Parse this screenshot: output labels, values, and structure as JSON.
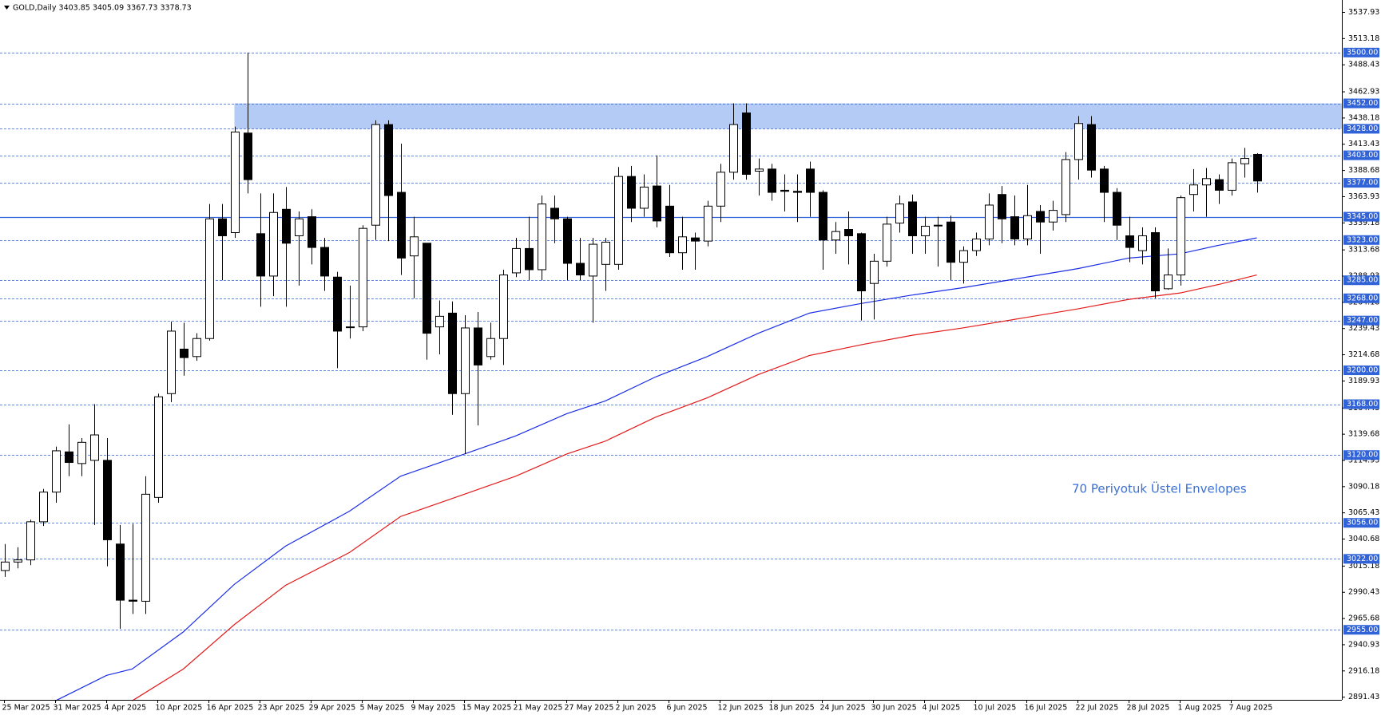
{
  "chart_data": {
    "type": "candlestick",
    "title": "GOLD,Daily 3403.85 3405.09 3367.73 3378.73",
    "annotation": "70 Periyotuk Üstel Envelopes",
    "categories": [
      "25 Mar 2025",
      null,
      null,
      null,
      "31 Mar 2025",
      null,
      null,
      null,
      "4 Apr 2025",
      null,
      null,
      null,
      "10 Apr 2025",
      null,
      null,
      null,
      "16 Apr 2025",
      null,
      null,
      null,
      "23 Apr 2025",
      null,
      null,
      null,
      "29 Apr 2025",
      null,
      null,
      null,
      "5 May 2025",
      null,
      null,
      null,
      "9 May 2025",
      null,
      null,
      null,
      "15 May 2025",
      null,
      null,
      null,
      "21 May 2025",
      null,
      null,
      null,
      "27 May 2025",
      null,
      null,
      null,
      "2 Jun 2025",
      null,
      null,
      null,
      "6 Jun 2025",
      null,
      null,
      null,
      "12 Jun 2025",
      null,
      null,
      null,
      "18 Jun 2025",
      null,
      null,
      null,
      "24 Jun 2025",
      null,
      null,
      null,
      "30 Jun 2025",
      null,
      null,
      null,
      "4 Jul 2025",
      null,
      null,
      null,
      "10 Jul 2025",
      null,
      null,
      null,
      "16 Jul 2025",
      null,
      null,
      null,
      "22 Jul 2025",
      null,
      null,
      null,
      "28 Jul 2025",
      null,
      null,
      null,
      "1 Aug 2025",
      null,
      null,
      null,
      "7 Aug 2025",
      null,
      null
    ],
    "open": [
      3011,
      3019,
      3021,
      3057,
      3085,
      3123,
      3112,
      3115,
      3115,
      3036,
      2983,
      2982,
      3080,
      3178,
      3220,
      3213,
      3230,
      3343,
      3330,
      3424,
      3329,
      3289,
      3352,
      3327,
      3345,
      3316,
      3288,
      3241,
      3241,
      3337,
      3432,
      3368,
      3308,
      3320,
      3241,
      3254,
      3178,
      3240,
      3213,
      3230,
      3292,
      3315,
      3295,
      3353,
      3343,
      3301,
      3289,
      3300,
      3300,
      3383,
      3353,
      3374,
      3355,
      3311,
      3325,
      3322,
      3355,
      3387,
      3443,
      3388,
      3390,
      3370,
      3369,
      3390,
      3368,
      3323,
      3333,
      3329,
      3282,
      3303,
      3339,
      3359,
      3327,
      3337,
      3340,
      3302,
      3313,
      3324,
      3366,
      3345,
      3324,
      3350,
      3340,
      3347,
      3399,
      3432,
      3390,
      3368,
      3327,
      3313,
      3330,
      3277,
      3290,
      3366,
      3375,
      3380,
      3370,
      3395,
      3403.85
    ],
    "high": [
      3036,
      3033,
      3059,
      3088,
      3128,
      3149,
      3136,
      3168,
      3136,
      3054,
      3055,
      3100,
      3178,
      3246,
      3245,
      3235,
      3357,
      3357,
      3430,
      3500,
      3367,
      3367,
      3373,
      3350,
      3352,
      3325,
      3293,
      3280,
      3337,
      3436,
      3436,
      3414,
      3345,
      3320,
      3266,
      3265,
      3252,
      3255,
      3245,
      3295,
      3325,
      3345,
      3365,
      3365,
      3345,
      3325,
      3325,
      3325,
      3392,
      3393,
      3385,
      3403,
      3375,
      3345,
      3330,
      3360,
      3395,
      3452,
      3452,
      3400,
      3395,
      3385,
      3385,
      3397,
      3370,
      3340,
      3350,
      3330,
      3310,
      3345,
      3365,
      3366,
      3345,
      3345,
      3346,
      3317,
      3330,
      3367,
      3374,
      3365,
      3375,
      3356,
      3360,
      3406,
      3440,
      3440,
      3393,
      3372,
      3345,
      3335,
      3335,
      3315,
      3365,
      3390,
      3391,
      3385,
      3400,
      3410,
      3405.09
    ],
    "low": [
      3005,
      3013,
      3016,
      3053,
      3075,
      3100,
      3100,
      3054,
      3015,
      2956,
      2970,
      2970,
      3075,
      3170,
      3195,
      3209,
      3228,
      3285,
      3325,
      3367,
      3260,
      3270,
      3260,
      3280,
      3300,
      3275,
      3202,
      3230,
      3237,
      3323,
      3322,
      3290,
      3268,
      3210,
      3215,
      3158,
      3121,
      3148,
      3210,
      3205,
      3288,
      3285,
      3285,
      3320,
      3285,
      3285,
      3245,
      3275,
      3295,
      3340,
      3345,
      3335,
      3307,
      3295,
      3295,
      3317,
      3340,
      3380,
      3380,
      3365,
      3360,
      3350,
      3340,
      3345,
      3295,
      3310,
      3300,
      3247,
      3248,
      3298,
      3330,
      3310,
      3310,
      3298,
      3285,
      3282,
      3308,
      3318,
      3320,
      3318,
      3318,
      3310,
      3332,
      3340,
      3380,
      3382,
      3340,
      3323,
      3302,
      3300,
      3268,
      3276,
      3280,
      3350,
      3345,
      3357,
      3365,
      3382,
      3367.73
    ],
    "close": [
      3019,
      3021,
      3057,
      3085,
      3124,
      3113,
      3132,
      3139,
      3040,
      2983,
      2982,
      3083,
      3175,
      3237,
      3212,
      3230,
      3343,
      3327,
      3425,
      3380,
      3289,
      3349,
      3320,
      3343,
      3316,
      3289,
      3237,
      3241,
      3334,
      3432,
      3365,
      3306,
      3326,
      3235,
      3251,
      3178,
      3240,
      3205,
      3230,
      3290,
      3315,
      3295,
      3357,
      3343,
      3301,
      3290,
      3319,
      3321,
      3383,
      3353,
      3373,
      3341,
      3311,
      3326,
      3322,
      3355,
      3387,
      3432,
      3385,
      3390,
      3368,
      3369,
      3368,
      3368,
      3323,
      3331,
      3327,
      3275,
      3303,
      3338,
      3357,
      3327,
      3336,
      3337,
      3302,
      3313,
      3324,
      3356,
      3343,
      3324,
      3346,
      3340,
      3351,
      3399,
      3433,
      3389,
      3368,
      3337,
      3316,
      3327,
      3275,
      3290,
      3363,
      3375,
      3381,
      3370,
      3396,
      3400,
      3378.73
    ],
    "up_color": "#ffffff",
    "down_color": "#000000",
    "envelopes": [
      {
        "color": "#1a2ee6",
        "x": [
          4,
          8,
          10,
          14,
          18,
          22,
          27,
          31,
          36,
          40,
          44,
          47,
          51,
          55,
          59,
          63,
          67,
          71,
          75,
          80,
          84,
          88,
          92,
          95,
          98
        ],
        "values": [
          2888,
          2912,
          2918,
          2953,
          2998,
          3034,
          3067,
          3100,
          3121,
          3138,
          3159,
          3171,
          3194,
          3213,
          3235,
          3254,
          3263,
          3271,
          3278,
          3288,
          3296,
          3306,
          3310,
          3318,
          3325
        ]
      },
      {
        "color": "#e31a1a",
        "x": [
          10,
          14,
          18,
          22,
          27,
          31,
          36,
          40,
          44,
          47,
          51,
          55,
          59,
          63,
          67,
          71,
          75,
          80,
          84,
          88,
          92,
          95,
          98
        ],
        "values": [
          2888,
          2918,
          2960,
          2997,
          3028,
          3062,
          3083,
          3100,
          3121,
          3133,
          3156,
          3174,
          3196,
          3214,
          3224,
          3233,
          3240,
          3250,
          3258,
          3267,
          3273,
          3281,
          3290
        ]
      }
    ],
    "zone": {
      "from": 3428,
      "to": 3452,
      "x": 18,
      "color": "#b3cbf5"
    },
    "level_color": "#3062d8",
    "levels": [
      {
        "value": 3500,
        "label": "3500.00",
        "style": "dash"
      },
      {
        "value": 3452,
        "label": "3452.00",
        "style": "dash"
      },
      {
        "value": 3428,
        "label": "3428.00",
        "style": "dash"
      },
      {
        "value": 3403,
        "label": "3403.00",
        "style": "dash"
      },
      {
        "value": 3377,
        "label": "3377.00",
        "style": "dash"
      },
      {
        "value": 3345,
        "label": "3345.00",
        "style": "solid"
      },
      {
        "value": 3323,
        "label": "3323.00",
        "style": "dash"
      },
      {
        "value": 3285,
        "label": "3285.00",
        "style": "dash"
      },
      {
        "value": 3268,
        "label": "3268.00",
        "style": "dash"
      },
      {
        "value": 3247,
        "label": "3247.00",
        "style": "dash"
      },
      {
        "value": 3200,
        "label": "3200.00",
        "style": "dash"
      },
      {
        "value": 3168,
        "label": "3168.00",
        "style": "dash"
      },
      {
        "value": 3120,
        "label": "3120.00",
        "style": "dash"
      },
      {
        "value": 3056,
        "label": "3056.00",
        "style": "dash"
      },
      {
        "value": 3022,
        "label": "3022.00",
        "style": "dash"
      },
      {
        "value": 2955,
        "label": "2955.00",
        "style": "dash"
      }
    ],
    "ylim": [
      2888.9,
      3549.6
    ],
    "yticks": [
      3537.93,
      3513.18,
      3488.43,
      3462.93,
      3438.18,
      3413.43,
      3388.68,
      3363.93,
      3339.18,
      3313.68,
      3288.93,
      3264.18,
      3239.43,
      3214.68,
      3189.93,
      3164.43,
      3139.68,
      3114.93,
      3090.18,
      3065.43,
      3040.68,
      3015.18,
      2990.43,
      2965.68,
      2940.93,
      2916.18,
      2891.43
    ]
  }
}
